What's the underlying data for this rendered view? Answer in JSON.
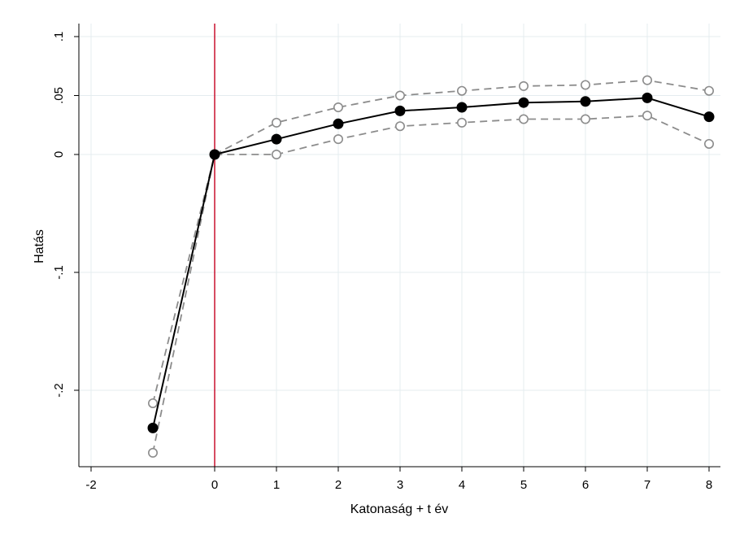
{
  "chart_data": {
    "type": "line",
    "title": "",
    "xlabel": "Katonaság + t év",
    "ylabel": "Hatás",
    "xlim": [
      -2,
      8
    ],
    "ylim": [
      -0.26,
      0.1
    ],
    "x_ticks": [
      -2,
      0,
      1,
      2,
      3,
      4,
      5,
      6,
      7,
      8
    ],
    "x_tick_labels": [
      "-2",
      "0",
      "1",
      "2",
      "3",
      "4",
      "5",
      "6",
      "7",
      "8"
    ],
    "y_ticks": [
      0.1,
      0.05,
      0,
      -0.1,
      -0.2
    ],
    "y_tick_labels": [
      ".1",
      ".05",
      "0",
      "-.1",
      "-.2"
    ],
    "grid": true,
    "reference_line": {
      "x": 0,
      "color": "#c8102e"
    },
    "series": [
      {
        "style": "solid-filled",
        "color": "#000000",
        "x": [
          -1,
          0,
          1,
          2,
          3,
          4,
          5,
          6,
          7,
          8
        ],
        "values": [
          -0.232,
          0.0,
          0.013,
          0.026,
          0.037,
          0.04,
          0.044,
          0.045,
          0.048,
          0.032
        ]
      },
      {
        "style": "dashed-hollow",
        "color": "#8c8c8c",
        "x": [
          -1,
          0,
          1,
          2,
          3,
          4,
          5,
          6,
          7,
          8
        ],
        "values": [
          -0.211,
          0.0,
          0.027,
          0.04,
          0.05,
          0.054,
          0.058,
          0.059,
          0.063,
          0.054
        ]
      },
      {
        "style": "dashed-hollow",
        "color": "#8c8c8c",
        "x": [
          -1,
          0,
          1,
          2,
          3,
          4,
          5,
          6,
          7,
          8
        ],
        "values": [
          -0.253,
          0.0,
          0.0,
          0.013,
          0.024,
          0.027,
          0.03,
          0.03,
          0.033,
          0.009
        ]
      }
    ]
  }
}
